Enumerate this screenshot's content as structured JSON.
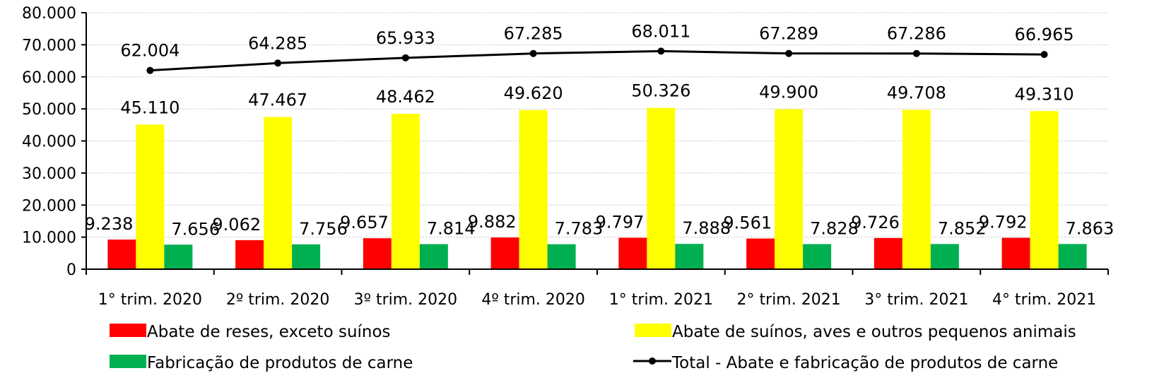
{
  "chart_data": {
    "type": "bar",
    "categories": [
      "1° trim. 2020",
      "2º trim. 2020",
      "3º trim. 2020",
      "4º trim. 2020",
      "1° trim. 2021",
      "2° trim. 2021",
      "3° trim. 2021",
      "4° trim. 2021"
    ],
    "series": [
      {
        "name": "Abate de reses, exceto suínos",
        "type": "bar",
        "color": "#ff0000",
        "values": [
          9238,
          9062,
          9657,
          9882,
          9797,
          9561,
          9726,
          9792
        ],
        "labels": [
          "9.238",
          "9.062",
          "9.657",
          "9.882",
          "9.797",
          "9.561",
          "9.726",
          "9.792"
        ]
      },
      {
        "name": "Abate de suínos, aves e outros pequenos animais",
        "type": "bar",
        "color": "#ffff00",
        "values": [
          45110,
          47467,
          48462,
          49620,
          50326,
          49900,
          49708,
          49310
        ],
        "labels": [
          "45.110",
          "47.467",
          "48.462",
          "49.620",
          "50.326",
          "49.900",
          "49.708",
          "49.310"
        ]
      },
      {
        "name": "Fabricação de produtos de carne",
        "type": "bar",
        "color": "#00b050",
        "values": [
          7656,
          7756,
          7814,
          7783,
          7888,
          7828,
          7852,
          7863
        ],
        "labels": [
          "7.656",
          "7.756",
          "7.814",
          "7.783",
          "7.888",
          "7.828",
          "7.852",
          "7.863"
        ]
      },
      {
        "name": "Total - Abate e fabricação de produtos de carne",
        "type": "line",
        "color": "#000000",
        "values": [
          62004,
          64285,
          65933,
          67285,
          68011,
          67289,
          67286,
          66965
        ],
        "labels": [
          "62.004",
          "64.285",
          "65.933",
          "67.285",
          "68.011",
          "67.289",
          "67.286",
          "66.965"
        ]
      }
    ],
    "ylim": [
      0,
      80000
    ],
    "yticks": [
      0,
      10000,
      20000,
      30000,
      40000,
      50000,
      60000,
      70000,
      80000
    ],
    "ytick_labels": [
      "0",
      "10.000",
      "20.000",
      "30.000",
      "40.000",
      "50.000",
      "60.000",
      "70.000",
      "80.000"
    ],
    "grid": true,
    "legend_position": "bottom"
  }
}
